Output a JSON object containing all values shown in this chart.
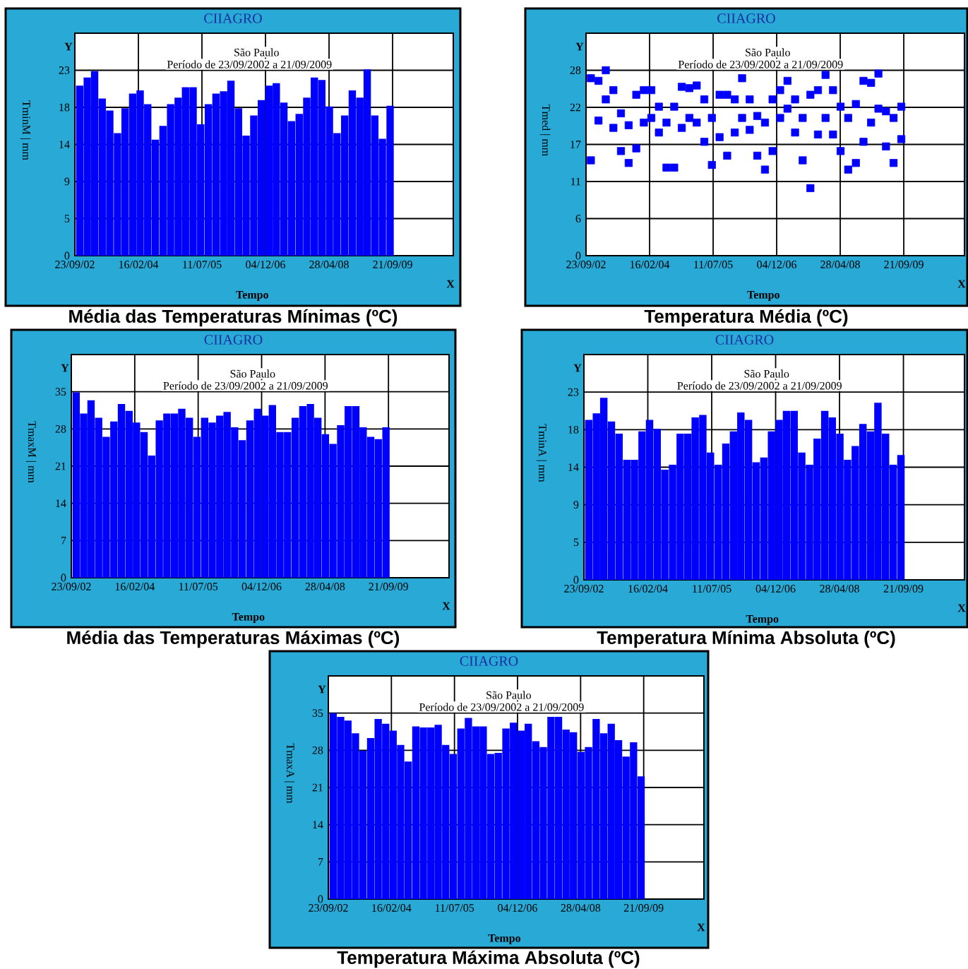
{
  "chart_data": [
    {
      "type": "bar",
      "title": "Média das Temperaturas Mínimas (ºC)",
      "subtitle": "São Paulo",
      "xlabel": "Tempo",
      "ylabel": "TminM | mm",
      "annotations": [
        "Período de 23/09/2002 a 21/09/2009",
        "CIIAGRO",
        "Y",
        "X"
      ],
      "x": [
        "2002-11",
        "2003-01",
        "2003-03",
        "2003-05",
        "2003-07",
        "2003-09",
        "2003-11",
        "2004-01",
        "2004-03",
        "2004-05",
        "2004-07",
        "2004-09",
        "2004-11",
        "2005-01",
        "2005-03",
        "2005-05",
        "2005-07",
        "2005-09",
        "2005-11",
        "2006-01",
        "2006-03",
        "2006-05",
        "2006-07",
        "2006-09",
        "2006-11",
        "2007-01",
        "2007-03",
        "2007-05",
        "2007-07",
        "2007-09",
        "2007-11",
        "2008-01",
        "2008-03",
        "2008-05",
        "2008-07",
        "2008-09",
        "2008-11",
        "2009-01",
        "2009-03",
        "2009-05",
        "2009-07",
        "2009-09"
      ],
      "values": [
        21.1,
        22.1,
        22.9,
        19.5,
        18.0,
        15.2,
        18.3,
        20.1,
        20.5,
        18.8,
        14.4,
        16.1,
        18.8,
        19.6,
        20.9,
        20.9,
        16.3,
        18.8,
        20.1,
        20.4,
        21.7,
        18.3,
        14.9,
        17.4,
        19.3,
        21.1,
        21.4,
        19.0,
        16.7,
        17.6,
        19.6,
        22.1,
        21.8,
        18.5,
        15.2,
        17.4,
        20.5,
        19.6,
        23.1,
        17.4,
        14.5,
        18.6
      ],
      "color": "#0000ff",
      "grid": true,
      "xlim": [
        "2002-09-23",
        "2011-01-22"
      ],
      "xticks": [
        {
          "value": "2002-09-23",
          "label": "23/09/02"
        },
        {
          "value": "2004-02-16",
          "label": "16/02/04"
        },
        {
          "value": "2005-07-11",
          "label": "11/07/05"
        },
        {
          "value": "2006-12-04",
          "label": "04/12/06"
        },
        {
          "value": "2008-04-28",
          "label": "28/04/08"
        },
        {
          "value": "2009-09-21",
          "label": "21/09/09"
        }
      ],
      "ylim": [
        0,
        27.6
      ],
      "yticks": [
        0,
        {
          "value": 4.6,
          "label": "5"
        },
        {
          "value": 9.2,
          "label": "9"
        },
        {
          "value": 13.8,
          "label": "14"
        },
        {
          "value": 18.4,
          "label": "18"
        },
        23
      ]
    },
    {
      "type": "scatter",
      "title": "Temperatura Média (ºC)",
      "subtitle": "São Paulo",
      "xlabel": "Tempo",
      "ylabel": "Tmed | mm",
      "annotations": [
        "Período de 23/09/2002 a 21/09/2009",
        "CIIAGRO",
        "Y",
        "X"
      ],
      "x": [
        "2002-11",
        "2002-11",
        "2003-01",
        "2003-01",
        "2003-03",
        "2003-03",
        "2003-05",
        "2003-05",
        "2003-07",
        "2003-07",
        "2003-09",
        "2003-09",
        "2003-11",
        "2003-11",
        "2004-01",
        "2004-01",
        "2004-03",
        "2004-03",
        "2004-05",
        "2004-05",
        "2004-07",
        "2004-07",
        "2004-09",
        "2004-09",
        "2004-11",
        "2004-11",
        "2005-01",
        "2005-01",
        "2005-03",
        "2005-03",
        "2005-05",
        "2005-05",
        "2005-07",
        "2005-07",
        "2005-09",
        "2005-09",
        "2005-11",
        "2005-11",
        "2006-01",
        "2006-01",
        "2006-03",
        "2006-03",
        "2006-05",
        "2006-05",
        "2006-07",
        "2006-07",
        "2006-09",
        "2006-09",
        "2006-11",
        "2006-11",
        "2007-01",
        "2007-01",
        "2007-03",
        "2007-03",
        "2007-05",
        "2007-05",
        "2007-07",
        "2007-07",
        "2007-09",
        "2007-09",
        "2007-11",
        "2007-11",
        "2008-01",
        "2008-01",
        "2008-03",
        "2008-03",
        "2008-05",
        "2008-05",
        "2008-07",
        "2008-07",
        "2008-09",
        "2008-09",
        "2008-11",
        "2008-11",
        "2009-01",
        "2009-01",
        "2009-03",
        "2009-03",
        "2009-05",
        "2009-05",
        "2009-07",
        "2009-07",
        "2009-09",
        "2009-09"
      ],
      "values": [
        26.8,
        14.4,
        26.4,
        20.4,
        28.0,
        23.6,
        25.0,
        19.3,
        21.5,
        15.8,
        19.7,
        14.0,
        24.3,
        16.2,
        25.0,
        20.1,
        25.0,
        20.8,
        22.5,
        18.6,
        20.1,
        13.3,
        22.5,
        13.3,
        25.5,
        19.3,
        25.3,
        20.8,
        25.7,
        20.1,
        23.6,
        17.2,
        20.8,
        13.7,
        24.3,
        17.9,
        24.3,
        15.1,
        23.6,
        18.6,
        26.8,
        20.8,
        23.6,
        19.0,
        21.1,
        15.1,
        20.1,
        13.0,
        23.6,
        15.8,
        25.0,
        20.8,
        26.4,
        22.2,
        23.6,
        18.6,
        20.8,
        14.4,
        24.3,
        10.2,
        25.0,
        18.3,
        27.3,
        20.8,
        25.0,
        18.3,
        22.5,
        15.8,
        20.8,
        13.0,
        22.9,
        14.0,
        26.4,
        17.2,
        26.1,
        20.1,
        27.5,
        22.2,
        21.8,
        16.5,
        20.8,
        14.0,
        22.5,
        17.6
      ],
      "color": "#0000ff",
      "marker": "square",
      "grid": true,
      "xlim": [
        "2002-09-23",
        "2011-01-22"
      ],
      "xticks": [
        {
          "value": "2002-09-23",
          "label": "23/09/02"
        },
        {
          "value": "2004-02-16",
          "label": "16/02/04"
        },
        {
          "value": "2005-07-11",
          "label": "11/07/05"
        },
        {
          "value": "2006-12-04",
          "label": "04/12/06"
        },
        {
          "value": "2008-04-28",
          "label": "28/04/08"
        },
        {
          "value": "2009-09-21",
          "label": "21/09/09"
        }
      ],
      "ylim": [
        0,
        33.6
      ],
      "yticks": [
        0,
        {
          "value": 5.6,
          "label": "6"
        },
        {
          "value": 11.2,
          "label": "11"
        },
        {
          "value": 16.8,
          "label": "17"
        },
        {
          "value": 22.4,
          "label": "22"
        },
        28
      ]
    },
    {
      "type": "bar",
      "title": "Média das Temperaturas Máximas (ºC)",
      "subtitle": "São Paulo",
      "xlabel": "Tempo",
      "ylabel": "TmaxM | mm",
      "annotations": [
        "Período de 23/09/2002 a 21/09/2009",
        "CIIAGRO",
        "Y",
        "X"
      ],
      "x": [
        "2002-11",
        "2003-01",
        "2003-03",
        "2003-05",
        "2003-07",
        "2003-09",
        "2003-11",
        "2004-01",
        "2004-03",
        "2004-05",
        "2004-07",
        "2004-09",
        "2004-11",
        "2005-01",
        "2005-03",
        "2005-05",
        "2005-07",
        "2005-09",
        "2005-11",
        "2006-01",
        "2006-03",
        "2006-05",
        "2006-07",
        "2006-09",
        "2006-11",
        "2007-01",
        "2007-03",
        "2007-05",
        "2007-07",
        "2007-09",
        "2007-11",
        "2008-01",
        "2008-03",
        "2008-05",
        "2008-07",
        "2008-09",
        "2008-11",
        "2009-01",
        "2009-03",
        "2009-05",
        "2009-07",
        "2009-09"
      ],
      "values": [
        34.9,
        30.9,
        33.4,
        30.1,
        26.5,
        29.4,
        32.7,
        31.4,
        29.2,
        27.4,
        23.0,
        29.6,
        30.9,
        30.9,
        31.8,
        30.1,
        26.5,
        30.1,
        29.2,
        30.5,
        31.2,
        28.3,
        25.9,
        29.6,
        31.8,
        30.5,
        32.5,
        27.4,
        27.4,
        30.1,
        32.3,
        32.7,
        30.1,
        27.0,
        25.2,
        28.7,
        32.3,
        32.3,
        28.3,
        26.5,
        26.1,
        28.3
      ],
      "color": "#0000ff",
      "grid": true,
      "xlim": [
        "2002-09-23",
        "2011-01-22"
      ],
      "xticks": [
        {
          "value": "2002-09-23",
          "label": "23/09/02"
        },
        {
          "value": "2004-02-16",
          "label": "16/02/04"
        },
        {
          "value": "2005-07-11",
          "label": "11/07/05"
        },
        {
          "value": "2006-12-04",
          "label": "04/12/06"
        },
        {
          "value": "2008-04-28",
          "label": "28/04/08"
        },
        {
          "value": "2009-09-21",
          "label": "21/09/09"
        }
      ],
      "ylim": [
        0,
        42
      ],
      "yticks": [
        0,
        7,
        14,
        21,
        28,
        35
      ]
    },
    {
      "type": "bar",
      "title": "Temperatura Mínima Absoluta (ºC)",
      "subtitle": "São Paulo",
      "xlabel": "Tempo",
      "ylabel": "TminA | mm",
      "annotations": [
        "Período de 23/09/2002 a 21/09/2009",
        "CIIAGRO",
        "Y",
        "X"
      ],
      "x": [
        "2002-11",
        "2003-01",
        "2003-03",
        "2003-05",
        "2003-07",
        "2003-09",
        "2003-11",
        "2004-01",
        "2004-03",
        "2004-05",
        "2004-07",
        "2004-09",
        "2004-11",
        "2005-01",
        "2005-03",
        "2005-05",
        "2005-07",
        "2005-09",
        "2005-11",
        "2006-01",
        "2006-03",
        "2006-05",
        "2006-07",
        "2006-09",
        "2006-11",
        "2007-01",
        "2007-03",
        "2007-05",
        "2007-07",
        "2007-09",
        "2007-11",
        "2008-01",
        "2008-03",
        "2008-05",
        "2008-07",
        "2008-09",
        "2008-11",
        "2009-01",
        "2009-03",
        "2009-05",
        "2009-07",
        "2009-09"
      ],
      "values": [
        19.6,
        20.4,
        22.3,
        19.4,
        17.9,
        14.7,
        14.7,
        18.2,
        19.6,
        18.5,
        13.5,
        14.1,
        17.9,
        17.9,
        19.9,
        20.2,
        15.6,
        14.1,
        16.7,
        18.2,
        20.5,
        19.6,
        14.4,
        15.0,
        18.2,
        19.6,
        20.7,
        20.7,
        15.6,
        14.1,
        17.3,
        20.7,
        19.9,
        17.9,
        14.7,
        16.4,
        19.1,
        18.2,
        21.7,
        17.9,
        14.1,
        15.3
      ],
      "color": "#0000ff",
      "grid": true,
      "xlim": [
        "2002-09-23",
        "2011-01-22"
      ],
      "xticks": [
        {
          "value": "2002-09-23",
          "label": "23/09/02"
        },
        {
          "value": "2004-02-16",
          "label": "16/02/04"
        },
        {
          "value": "2005-07-11",
          "label": "11/07/05"
        },
        {
          "value": "2006-12-04",
          "label": "04/12/06"
        },
        {
          "value": "2008-04-28",
          "label": "28/04/08"
        },
        {
          "value": "2009-09-21",
          "label": "21/09/09"
        }
      ],
      "ylim": [
        0,
        27.6
      ],
      "yticks": [
        0,
        {
          "value": 4.6,
          "label": "5"
        },
        {
          "value": 9.2,
          "label": "9"
        },
        {
          "value": 13.8,
          "label": "14"
        },
        {
          "value": 18.4,
          "label": "18"
        },
        23
      ]
    },
    {
      "type": "bar",
      "title": "Temperatura Máxima Absoluta (ºC)",
      "subtitle": "São Paulo",
      "xlabel": "Tempo",
      "ylabel": "TmaxA | mm",
      "annotations": [
        "Período de 23/09/2002 a 21/09/2009",
        "CIIAGRO",
        "Y",
        "X"
      ],
      "x": [
        "2002-11",
        "2003-01",
        "2003-03",
        "2003-05",
        "2003-07",
        "2003-09",
        "2003-11",
        "2004-01",
        "2004-03",
        "2004-05",
        "2004-07",
        "2004-09",
        "2004-11",
        "2005-01",
        "2005-03",
        "2005-05",
        "2005-07",
        "2005-09",
        "2005-11",
        "2006-01",
        "2006-03",
        "2006-05",
        "2006-07",
        "2006-09",
        "2006-11",
        "2007-01",
        "2007-03",
        "2007-05",
        "2007-07",
        "2007-09",
        "2007-11",
        "2008-01",
        "2008-03",
        "2008-05",
        "2008-07",
        "2008-09",
        "2008-11",
        "2009-01",
        "2009-03",
        "2009-05",
        "2009-07",
        "2009-09"
      ],
      "values": [
        35.0,
        34.3,
        33.6,
        31.2,
        27.9,
        30.3,
        33.9,
        33.0,
        31.7,
        29.0,
        25.9,
        32.5,
        32.3,
        32.3,
        32.8,
        29.0,
        27.3,
        32.1,
        34.1,
        32.5,
        32.5,
        27.3,
        27.5,
        32.1,
        33.2,
        31.7,
        33.0,
        29.7,
        28.6,
        34.3,
        34.3,
        31.9,
        31.4,
        27.7,
        28.6,
        33.9,
        31.2,
        33.0,
        29.9,
        26.8,
        29.5,
        23.1
      ],
      "color": "#0000ff",
      "grid": true,
      "xlim": [
        "2002-09-23",
        "2011-01-22"
      ],
      "xticks": [
        {
          "value": "2002-09-23",
          "label": "23/09/02"
        },
        {
          "value": "2004-02-16",
          "label": "16/02/04"
        },
        {
          "value": "2005-07-11",
          "label": "11/07/05"
        },
        {
          "value": "2006-12-04",
          "label": "04/12/06"
        },
        {
          "value": "2008-04-28",
          "label": "28/04/08"
        },
        {
          "value": "2009-09-21",
          "label": "21/09/09"
        }
      ],
      "ylim": [
        0,
        42
      ],
      "yticks": [
        0,
        7,
        14,
        21,
        28,
        35
      ]
    }
  ]
}
